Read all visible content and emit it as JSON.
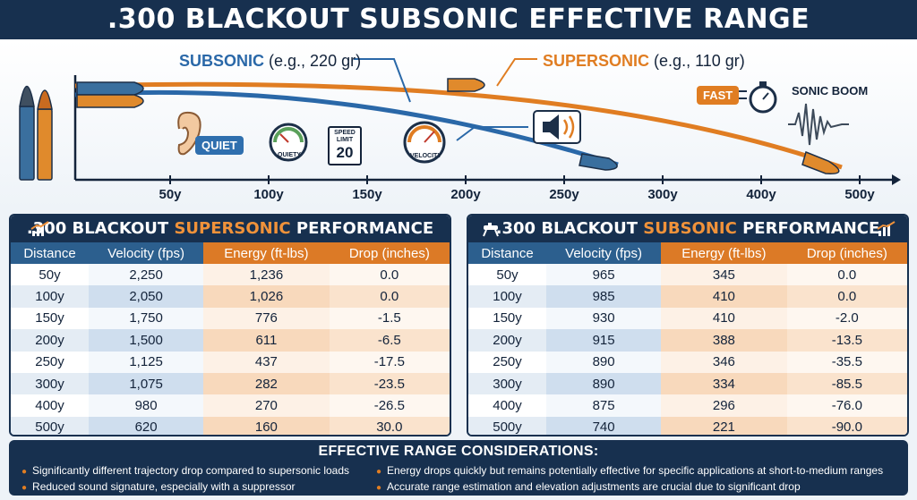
{
  "title": ".300 BLACKOUT SUBSONIC EFFECTIVE RANGE",
  "trajectory": {
    "subsonic_name": "SUBSONIC",
    "subsonic_note": "(e.g., 220 gr)",
    "supersonic_name": "SUPERSONIC",
    "supersonic_note": "(e.g., 110 gr)",
    "x_ticks": [
      "50y",
      "100y",
      "150y",
      "200y",
      "250y",
      "300y",
      "400y",
      "500y"
    ],
    "quiet_label": "QUIET",
    "quiety_label": "QUIETY",
    "speed_sign": {
      "top": "SPEED LIMIT",
      "number": "20"
    },
    "velocity_label": "VELOCITY",
    "fast_label": "FAST",
    "sonic_boom_label": "SONIC BOOM",
    "colors": {
      "subsonic": "#2a68a8",
      "supersonic": "#e07d22"
    }
  },
  "supersonic_table": {
    "title_pre": ".300 BLACKOUT ",
    "title_hl": "SUPERSONIC",
    "title_post": " PERFORMANCE",
    "headers": [
      "Distance",
      "Velocity (fps)",
      "Energy (ft-lbs)",
      "Drop (inches)"
    ],
    "rows": [
      [
        "50y",
        "2,250",
        "1,236",
        "0.0"
      ],
      [
        "100y",
        "2,050",
        "1,026",
        "0.0"
      ],
      [
        "150y",
        "1,750",
        "776",
        "-1.5"
      ],
      [
        "200y",
        "1,500",
        "611",
        "-6.5"
      ],
      [
        "250y",
        "1,125",
        "437",
        "-17.5"
      ],
      [
        "300y",
        "1,075",
        "282",
        "-23.5"
      ],
      [
        "400y",
        "980",
        "270",
        "-26.5"
      ],
      [
        "500y",
        "620",
        "160",
        "30.0"
      ]
    ]
  },
  "subsonic_table": {
    "title_pre": ".300 BLACKOUT ",
    "title_hl": "SUBSONIC",
    "title_post": " PERFORMANCE",
    "headers": [
      "Distance",
      "Velocity (fps)",
      "Energy (ft-lbs)",
      "Drop (inches)"
    ],
    "rows": [
      [
        "50y",
        "965",
        "345",
        "0.0"
      ],
      [
        "100y",
        "985",
        "410",
        "0.0"
      ],
      [
        "150y",
        "930",
        "410",
        "-2.0"
      ],
      [
        "200y",
        "915",
        "388",
        "-13.5"
      ],
      [
        "250y",
        "890",
        "346",
        "-35.5"
      ],
      [
        "300y",
        "890",
        "334",
        "-85.5"
      ],
      [
        "400y",
        "875",
        "296",
        "-76.0"
      ],
      [
        "500y",
        "740",
        "221",
        "-90.0"
      ]
    ]
  },
  "considerations": {
    "title": "EFFECTIVE RANGE CONSIDERATIONS:",
    "left": [
      "Significantly different trajectory drop compared to supersonic loads",
      "Reduced sound signature, especially with a suppressor"
    ],
    "right": [
      "Energy drops quickly but remains potentially effective for specific applications at short-to-medium ranges",
      "Accurate range estimation and elevation adjustments are crucial due to significant drop"
    ]
  }
}
